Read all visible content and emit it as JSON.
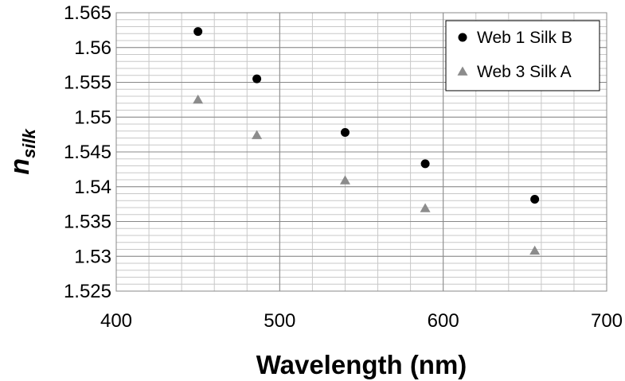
{
  "chart_data": {
    "type": "scatter",
    "xlabel": "Wavelength (nm)",
    "ylabel": {
      "main": "n",
      "subscript": "silk"
    },
    "xlim": [
      400,
      700
    ],
    "ylim": [
      1.525,
      1.565
    ],
    "x_ticks": [
      400,
      500,
      600,
      700
    ],
    "x_tick_labels": [
      "400",
      "500",
      "600",
      "700"
    ],
    "y_ticks": [
      1.525,
      1.53,
      1.535,
      1.54,
      1.545,
      1.55,
      1.555,
      1.56,
      1.565
    ],
    "y_tick_labels": [
      "1.525",
      "1.53",
      "1.535",
      "1.54",
      "1.545",
      "1.55",
      "1.555",
      "1.56",
      "1.565"
    ],
    "minor_x_step": 20,
    "minor_y_step": 0.001,
    "grid": true,
    "legend_position": "top-right",
    "series": [
      {
        "name": "Web 1 Silk B",
        "marker": "circle",
        "color": "#000000",
        "points": [
          {
            "x": 450,
            "y": 1.5623
          },
          {
            "x": 486,
            "y": 1.5555
          },
          {
            "x": 540,
            "y": 1.5478
          },
          {
            "x": 589,
            "y": 1.5433
          },
          {
            "x": 656,
            "y": 1.5382
          }
        ]
      },
      {
        "name": "Web 3 Silk A",
        "marker": "triangle",
        "color": "#8c8c8c",
        "points": [
          {
            "x": 450,
            "y": 1.5525
          },
          {
            "x": 486,
            "y": 1.5474
          },
          {
            "x": 540,
            "y": 1.5409
          },
          {
            "x": 589,
            "y": 1.5369
          },
          {
            "x": 656,
            "y": 1.5308
          }
        ]
      }
    ]
  }
}
